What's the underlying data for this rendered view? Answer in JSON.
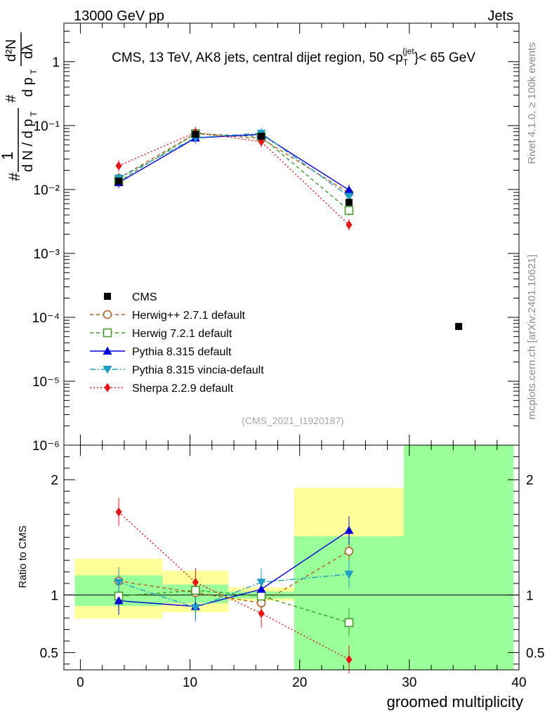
{
  "header": {
    "left": "13000 GeV pp",
    "right": "Jets"
  },
  "side_labels": {
    "rivet": "Rivet 4.1.0, ≥ 100k events",
    "mcplots": "mcplots.cern.ch [arXiv:2401.10621]"
  },
  "chart_data": [
    {
      "type": "line",
      "panel": "main",
      "title": "CMS, 13 TeV, AK8 jets, central dijet region, 50 <p_T^{jet}< 65 GeV",
      "reference": "(CMS_2021_I1920187)",
      "ylabel": "(1/dN/dp_T) d²N/dp_T dλ",
      "yscale": "log",
      "ylim": [
        1e-06,
        4
      ],
      "xlim": [
        -1.5,
        40
      ],
      "y_ticks": [
        {
          "value": 1,
          "label": "1"
        },
        {
          "value": 0.1,
          "label": "10⁻¹"
        },
        {
          "value": 0.01,
          "label": "10⁻²"
        },
        {
          "value": 0.001,
          "label": "10⁻³"
        },
        {
          "value": 0.0001,
          "label": "10⁻⁴"
        },
        {
          "value": 1e-05,
          "label": "10⁻⁵"
        },
        {
          "value": 1e-06,
          "label": "10⁻⁶"
        }
      ],
      "data": {
        "name": "CMS",
        "x": [
          3.5,
          10.5,
          16.5,
          24.5,
          34.5
        ],
        "y": [
          0.0135,
          0.073,
          0.068,
          0.0063,
          7.2e-05
        ]
      },
      "series": [
        {
          "name": "Herwig++ 2.7.1 default",
          "color": "#b35a1f",
          "dash": "5,4",
          "marker": "circle-open",
          "x": [
            3.5,
            10.5,
            16.5,
            24.5
          ],
          "y": [
            0.015,
            0.075,
            0.063,
            0.0088
          ]
        },
        {
          "name": "Herwig 7.2.1 default",
          "color": "#3c9a24",
          "dash": "5,4",
          "marker": "square-open",
          "x": [
            3.5,
            10.5,
            16.5,
            24.5
          ],
          "y": [
            0.0133,
            0.075,
            0.067,
            0.0047
          ]
        },
        {
          "name": "Pythia 8.315 default",
          "color": "#0000dd",
          "dash": "",
          "marker": "triangle-up",
          "x": [
            3.5,
            10.5,
            16.5,
            24.5
          ],
          "y": [
            0.0128,
            0.064,
            0.073,
            0.0098
          ]
        },
        {
          "name": "Pythia 8.315 vincia-default",
          "color": "#1c9ec7",
          "dash": "8,3,2,3",
          "marker": "triangle-down",
          "x": [
            3.5,
            10.5,
            16.5,
            24.5
          ],
          "y": [
            0.015,
            0.065,
            0.076,
            0.0078
          ]
        },
        {
          "name": "Sherpa 2.2.9 default",
          "color": "#ee1111",
          "dash": "2,3",
          "marker": "diamond",
          "x": [
            3.5,
            10.5,
            16.5,
            24.5
          ],
          "y": [
            0.0235,
            0.078,
            0.056,
            0.0028
          ]
        }
      ]
    },
    {
      "type": "line",
      "panel": "ratio",
      "ylabel": "Ratio to CMS",
      "xlabel": "groomed multiplicity",
      "ylim": [
        0.35,
        2.3
      ],
      "xlim": [
        -1.5,
        40
      ],
      "y_ticks": [
        {
          "value": 0.5,
          "label": "0.5"
        },
        {
          "value": 1,
          "label": "1"
        },
        {
          "value": 2,
          "label": "2"
        }
      ],
      "x_ticks": [
        {
          "value": 0,
          "label": "0"
        },
        {
          "value": 10,
          "label": "10"
        },
        {
          "value": 20,
          "label": "20"
        },
        {
          "value": 30,
          "label": "30"
        },
        {
          "value": 40,
          "label": "40"
        }
      ],
      "uncertainty_bands": [
        {
          "x0": -0.5,
          "x1": 7.5,
          "stat": [
            0.905,
            1.17
          ],
          "total": [
            0.795,
            1.315
          ]
        },
        {
          "x0": 7.5,
          "x1": 13.5,
          "stat": [
            0.93,
            1.09
          ],
          "total": [
            0.85,
            1.21
          ]
        },
        {
          "x0": 13.5,
          "x1": 19.5,
          "stat": [
            0.97,
            1.03
          ],
          "total": [
            0.95,
            1.065
          ]
        },
        {
          "x0": 19.5,
          "x1": 29.5,
          "stat": [
            0.35,
            1.51
          ],
          "total": [
            0.35,
            1.93
          ]
        },
        {
          "x0": 29.5,
          "x1": 39.5,
          "stat": [
            0.35,
            2.3
          ],
          "total": [
            0.35,
            2.3
          ]
        }
      ],
      "series": [
        {
          "name": "Herwig++ 2.7.1 default",
          "x": [
            3.5,
            10.5,
            16.5,
            24.5
          ],
          "y": [
            1.12,
            1.02,
            0.93,
            1.38
          ]
        },
        {
          "name": "Herwig 7.2.1 default",
          "x": [
            3.5,
            10.5,
            16.5,
            24.5
          ],
          "y": [
            0.99,
            1.04,
            0.99,
            0.76
          ]
        },
        {
          "name": "Pythia 8.315 default",
          "x": [
            3.5,
            10.5,
            16.5,
            24.5
          ],
          "y": [
            0.95,
            0.9,
            1.05,
            1.56
          ]
        },
        {
          "name": "Pythia 8.315 vincia-default",
          "x": [
            3.5,
            10.5,
            16.5,
            24.5
          ],
          "y": [
            1.11,
            0.89,
            1.11,
            1.18
          ]
        },
        {
          "name": "Sherpa 2.2.9 default",
          "x": [
            3.5,
            10.5,
            16.5,
            24.5
          ],
          "y": [
            1.72,
            1.11,
            0.84,
            0.44
          ]
        }
      ]
    }
  ]
}
